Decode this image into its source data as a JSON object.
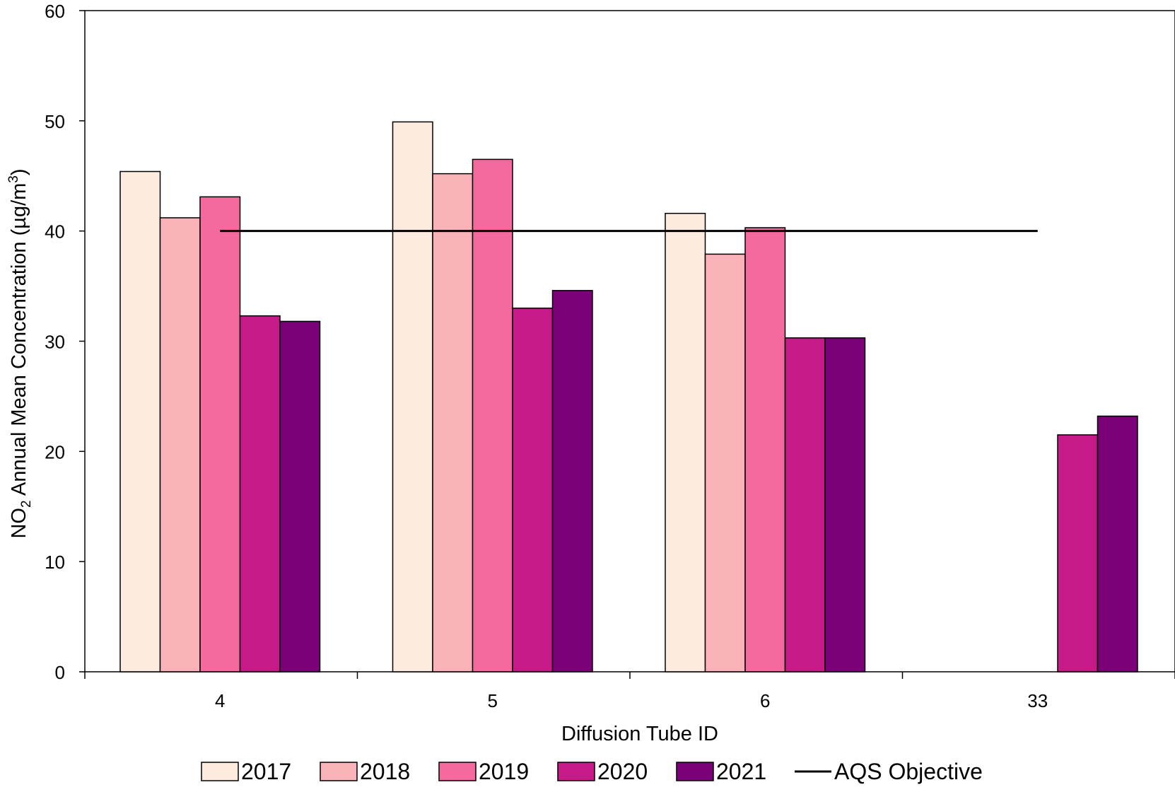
{
  "chart_data": {
    "type": "bar",
    "title": "",
    "xlabel": "Diffusion Tube ID",
    "ylabel": {
      "prefix": "NO",
      "sub": "2",
      "middle": " Annual Mean Concentration (µg/m",
      "sup": "3",
      "suffix": ")"
    },
    "ylim": [
      0,
      60
    ],
    "yticks": [
      "0",
      "10",
      "20",
      "30",
      "40",
      "50",
      "60"
    ],
    "categories": [
      "4",
      "5",
      "6",
      "33"
    ],
    "series": [
      {
        "name": "2017",
        "color": "#FDEBE0",
        "values": [
          45.4,
          49.9,
          41.6,
          null
        ]
      },
      {
        "name": "2018",
        "color": "#F9B3B8",
        "values": [
          41.2,
          45.2,
          37.9,
          null
        ]
      },
      {
        "name": "2019",
        "color": "#F46A9E",
        "values": [
          43.1,
          46.5,
          40.3,
          null
        ]
      },
      {
        "name": "2020",
        "color": "#C61A89",
        "values": [
          32.3,
          33.0,
          30.3,
          21.5
        ]
      },
      {
        "name": "2021",
        "color": "#7A0177",
        "values": [
          31.8,
          34.6,
          30.3,
          23.2
        ]
      }
    ],
    "objective_line": {
      "name": "AQS Objective",
      "value": 40,
      "color": "#000000"
    },
    "grid": false,
    "legend_placement": "bottom"
  }
}
